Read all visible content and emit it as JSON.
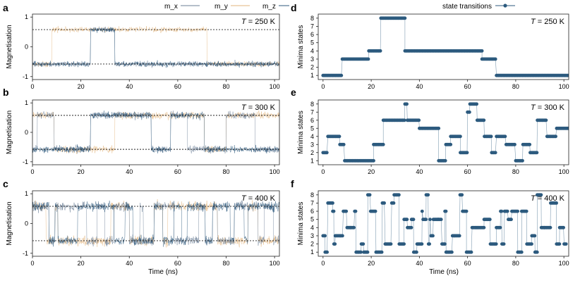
{
  "figure": {
    "legend_left": [
      "m_x",
      "m_y",
      "m_z"
    ],
    "legend_right": "state transitions",
    "xlabel": "Time (ns)",
    "colors": {
      "mx": "#6b7f96",
      "my": "#e3b57c",
      "mz": "#2f5a7e",
      "state": "#2c5a7e",
      "dotted": "#222222"
    }
  },
  "chart_data": [
    {
      "panel": "a",
      "type": "line",
      "title": "T = 250 K",
      "temperature": "250",
      "ylabel": "Magnetisation",
      "xlim": [
        0,
        102
      ],
      "ylim": [
        -1.1,
        1.1
      ],
      "xticks": [
        0,
        20,
        40,
        60,
        80,
        100
      ],
      "yticks": [
        -1,
        0,
        1
      ],
      "ref_lines": [
        0.577,
        -0.577
      ],
      "segments": [
        {
          "t0": 0,
          "t1": 8,
          "mx": -0.58,
          "my": -0.58,
          "mz": -0.58
        },
        {
          "t0": 8,
          "t1": 24,
          "mx": -0.58,
          "my": 0.58,
          "mz": -0.58
        },
        {
          "t0": 24,
          "t1": 34,
          "mx": 0.58,
          "my": 0.58,
          "mz": 0.58
        },
        {
          "t0": 34,
          "t1": 72,
          "mx": -0.58,
          "my": 0.58,
          "mz": -0.58
        },
        {
          "t0": 72,
          "t1": 102,
          "mx": -0.58,
          "my": -0.58,
          "mz": -0.58
        }
      ]
    },
    {
      "panel": "b",
      "type": "line",
      "title": "T = 300 K",
      "temperature": "300",
      "ylabel": "Magnetisation",
      "xlim": [
        0,
        102
      ],
      "ylim": [
        -1.1,
        1.1
      ],
      "xticks": [
        0,
        20,
        40,
        60,
        80,
        100
      ],
      "yticks": [
        -1,
        0,
        1
      ],
      "ref_lines": [
        0.577,
        -0.577
      ],
      "segments": [
        {
          "t0": 0,
          "t1": 2,
          "mx": -0.58,
          "my": 0.58,
          "mz": -0.58
        },
        {
          "t0": 2,
          "t1": 9,
          "mx": 0.58,
          "my": 0.58,
          "mz": -0.58
        },
        {
          "t0": 9,
          "t1": 24,
          "mx": -0.58,
          "my": -0.58,
          "mz": -0.58
        },
        {
          "t0": 24,
          "t1": 34,
          "mx": 0.58,
          "my": -0.58,
          "mz": 0.58
        },
        {
          "t0": 34,
          "t1": 49,
          "mx": 0.58,
          "my": 0.58,
          "mz": 0.58
        },
        {
          "t0": 49,
          "t1": 57,
          "mx": -0.58,
          "my": 0.58,
          "mz": -0.58
        },
        {
          "t0": 57,
          "t1": 64,
          "mx": 0.58,
          "my": 0.58,
          "mz": 0.58
        },
        {
          "t0": 64,
          "t1": 71,
          "mx": -0.58,
          "my": 0.58,
          "mz": 0.58
        },
        {
          "t0": 71,
          "t1": 80,
          "mx": -0.58,
          "my": -0.58,
          "mz": -0.58
        },
        {
          "t0": 80,
          "t1": 92,
          "mx": 0.58,
          "my": 0.58,
          "mz": -0.58
        },
        {
          "t0": 92,
          "t1": 102,
          "mx": -0.58,
          "my": 0.58,
          "mz": -0.58
        }
      ]
    },
    {
      "panel": "c",
      "type": "line",
      "title": "T = 400 K",
      "temperature": "400",
      "ylabel": "Magnetisation",
      "xlim": [
        0,
        102
      ],
      "ylim": [
        -1.1,
        1.1
      ],
      "xticks": [
        0,
        20,
        40,
        60,
        80,
        100
      ],
      "yticks": [
        -1,
        0,
        1
      ],
      "ref_lines": [
        0.577,
        -0.577
      ],
      "switch_interval_ns": 3.0,
      "seed": 7
    },
    {
      "panel": "d",
      "type": "scatter",
      "title": "T = 250 K",
      "temperature": "250",
      "ylabel": "Minima states",
      "xlim": [
        -2,
        102
      ],
      "ylim": [
        0.5,
        8.5
      ],
      "xticks": [
        0,
        20,
        40,
        60,
        80,
        100
      ],
      "yticks": [
        1,
        2,
        3,
        4,
        5,
        6,
        7,
        8
      ],
      "states": [
        [
          0,
          8,
          1
        ],
        [
          8,
          19,
          3
        ],
        [
          19,
          24,
          4
        ],
        [
          24,
          34,
          8
        ],
        [
          34,
          66,
          4
        ],
        [
          66,
          72,
          3
        ],
        [
          72,
          102,
          1
        ]
      ]
    },
    {
      "panel": "e",
      "type": "scatter",
      "title": "T = 300 K",
      "temperature": "300",
      "ylabel": "Minima states",
      "xlim": [
        -2,
        102
      ],
      "ylim": [
        0.5,
        8.5
      ],
      "xticks": [
        0,
        20,
        40,
        60,
        80,
        100
      ],
      "yticks": [
        1,
        2,
        3,
        4,
        5,
        6,
        7,
        8
      ],
      "states": [
        [
          0,
          2,
          2
        ],
        [
          2,
          7,
          4
        ],
        [
          7,
          9,
          3
        ],
        [
          9,
          21,
          1
        ],
        [
          21,
          25,
          3
        ],
        [
          25,
          34,
          6
        ],
        [
          34,
          35,
          8
        ],
        [
          35,
          40,
          6
        ],
        [
          40,
          48,
          5
        ],
        [
          48,
          51,
          1
        ],
        [
          51,
          53,
          3
        ],
        [
          53,
          57,
          4
        ],
        [
          57,
          60,
          2
        ],
        [
          60,
          61,
          7
        ],
        [
          61,
          64,
          8
        ],
        [
          64,
          67,
          6
        ],
        [
          67,
          70,
          4
        ],
        [
          70,
          72,
          2
        ],
        [
          72,
          76,
          4
        ],
        [
          76,
          80,
          3
        ],
        [
          80,
          83,
          1
        ],
        [
          83,
          86,
          3
        ],
        [
          86,
          89,
          2
        ],
        [
          89,
          93,
          6
        ],
        [
          93,
          97,
          4
        ],
        [
          97,
          102,
          5
        ]
      ]
    },
    {
      "panel": "f",
      "type": "scatter",
      "title": "T = 400 K",
      "temperature": "400",
      "ylabel": "Minima states",
      "xlim": [
        -2,
        102
      ],
      "ylim": [
        0.5,
        8.5
      ],
      "xticks": [
        0,
        20,
        40,
        60,
        80,
        100
      ],
      "yticks": [
        1,
        2,
        3,
        4,
        5,
        6,
        7,
        8
      ],
      "switch_interval_ns": 1.5,
      "seed": 11
    }
  ]
}
